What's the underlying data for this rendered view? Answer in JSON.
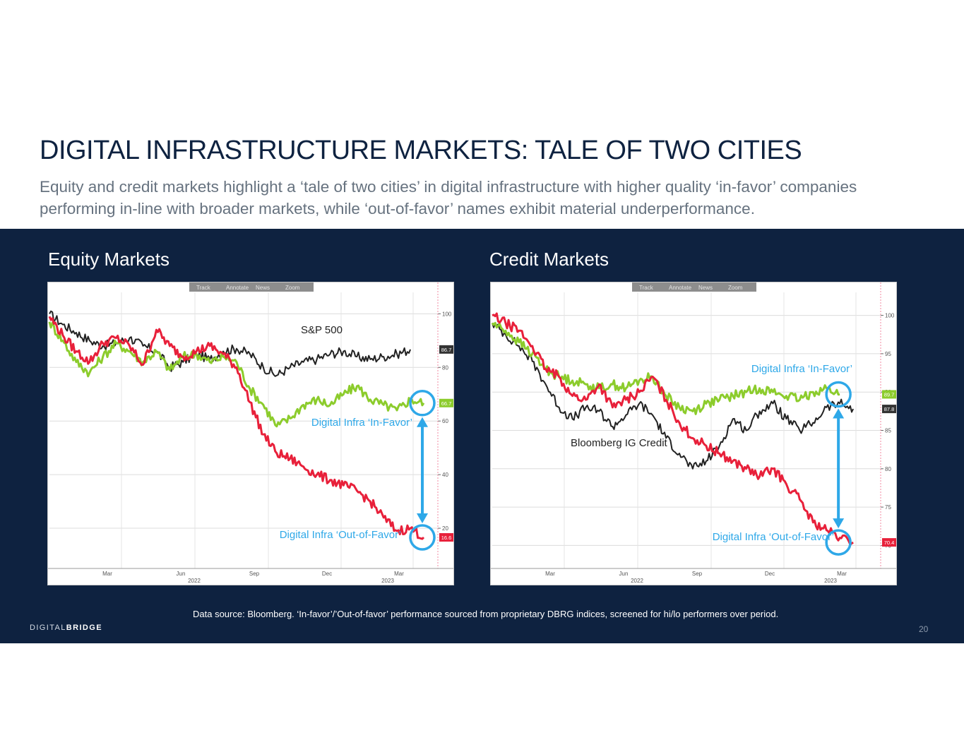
{
  "slide": {
    "title": "DIGITAL INFRASTRUCTURE MARKETS: TALE OF TWO CITIES",
    "subtitle": "Equity and credit markets highlight a ‘tale of two cities’ in digital infrastructure with higher quality ‘in-favor’ companies performing in-line with broader markets, while ‘out-of-favor’ names exhibit material underperformance.",
    "footnote": "Data source: Bloomberg. ‘In-favor’/’Out-of-favor’ performance sourced from proprietary DBRG indices, screened for hi/lo performers over period.",
    "logo_light": "DIGITAL",
    "logo_bold": "BRIDGE",
    "page_number": "20"
  },
  "colors": {
    "navy": "#0e2240",
    "in_favor": "#8ccc2c",
    "out_of_favor": "#e8203a",
    "benchmark": "#222222",
    "highlight": "#2ea8e8"
  },
  "chart_data": [
    {
      "type": "line",
      "panel_title": "Equity Markets",
      "toolbar": [
        "Track",
        "Annotate",
        "News",
        "Zoom"
      ],
      "x_ticks": [
        "Mar",
        "Jun",
        "Sep",
        "Dec",
        "Mar"
      ],
      "year_labels": [
        "2022",
        "2023"
      ],
      "x_domain": [
        0,
        14
      ],
      "y_ticks": [
        20,
        40,
        60,
        80,
        100
      ],
      "ylim": [
        5,
        108
      ],
      "series": [
        {
          "name": "S&P 500",
          "color": "#222222",
          "last_value": "86.7",
          "values": [
            [
              0,
              100
            ],
            [
              0.5,
              96
            ],
            [
              1,
              93
            ],
            [
              1.5,
              90
            ],
            [
              2,
              88
            ],
            [
              2.5,
              89
            ],
            [
              3,
              91
            ],
            [
              3.5,
              88
            ],
            [
              4,
              86
            ],
            [
              4.5,
              80
            ],
            [
              5,
              82
            ],
            [
              5.5,
              85
            ],
            [
              6,
              83
            ],
            [
              6.5,
              86
            ],
            [
              7,
              87
            ],
            [
              7.5,
              85
            ],
            [
              8,
              80
            ],
            [
              8.5,
              77
            ],
            [
              9,
              80
            ],
            [
              9.5,
              82
            ],
            [
              10,
              83
            ],
            [
              10.5,
              85
            ],
            [
              11,
              86
            ],
            [
              11.5,
              84
            ],
            [
              12,
              83
            ],
            [
              12.5,
              84
            ],
            [
              13,
              85
            ],
            [
              13.5,
              86.7
            ]
          ]
        },
        {
          "name": "Digital Infra ‘In-Favor’",
          "color": "#8ccc2c",
          "last_value": "66.7",
          "values": [
            [
              0,
              97
            ],
            [
              0.5,
              90
            ],
            [
              1,
              82
            ],
            [
              1.5,
              78
            ],
            [
              2,
              84
            ],
            [
              2.5,
              89
            ],
            [
              3,
              86
            ],
            [
              3.5,
              82
            ],
            [
              4,
              86
            ],
            [
              4.5,
              79
            ],
            [
              5,
              84
            ],
            [
              5.5,
              85
            ],
            [
              6,
              82
            ],
            [
              6.5,
              84
            ],
            [
              7,
              82
            ],
            [
              7.5,
              72
            ],
            [
              8,
              66
            ],
            [
              8.5,
              58
            ],
            [
              9,
              61
            ],
            [
              9.5,
              66
            ],
            [
              10,
              68
            ],
            [
              10.5,
              66
            ],
            [
              11,
              70
            ],
            [
              11.5,
              73
            ],
            [
              12,
              68
            ],
            [
              12.5,
              66
            ],
            [
              13,
              64
            ],
            [
              13.5,
              68
            ],
            [
              14,
              66.7
            ]
          ]
        },
        {
          "name": "Digital Infra ‘Out-of-Favor’",
          "color": "#e8203a",
          "last_value": "16.6",
          "values": [
            [
              0,
              99
            ],
            [
              0.5,
              92
            ],
            [
              1,
              86
            ],
            [
              1.5,
              82
            ],
            [
              2,
              89
            ],
            [
              2.5,
              91
            ],
            [
              3,
              88
            ],
            [
              3.5,
              81
            ],
            [
              4,
              94
            ],
            [
              4.5,
              88
            ],
            [
              5,
              84
            ],
            [
              5.5,
              86
            ],
            [
              6,
              88
            ],
            [
              6.5,
              85
            ],
            [
              7,
              80
            ],
            [
              7.5,
              67
            ],
            [
              8,
              55
            ],
            [
              8.5,
              48
            ],
            [
              9,
              46
            ],
            [
              9.5,
              43
            ],
            [
              10,
              40
            ],
            [
              10.5,
              38
            ],
            [
              11,
              36
            ],
            [
              11.5,
              34
            ],
            [
              12,
              30
            ],
            [
              12.5,
              24
            ],
            [
              13,
              19
            ],
            [
              13.5,
              20
            ],
            [
              14,
              16.6
            ]
          ]
        }
      ],
      "annotations": [
        {
          "text": "S&P 500",
          "color": "#222222"
        },
        {
          "text": "Digital Infra ‘In-Favor’",
          "color": "#2ea8e8"
        },
        {
          "text": "Digital Infra ‘Out-of-Favor’",
          "color": "#2ea8e8"
        }
      ],
      "gap_arrow_between": [
        66.7,
        16.6
      ]
    },
    {
      "type": "line",
      "panel_title": "Credit Markets",
      "toolbar": [
        "Track",
        "Annotate",
        "News",
        "Zoom"
      ],
      "x_ticks": [
        "Mar",
        "Jun",
        "Sep",
        "Dec",
        "Mar"
      ],
      "year_labels": [
        "2022",
        "2023"
      ],
      "x_domain": [
        0,
        14
      ],
      "y_ticks": [
        70,
        75,
        80,
        85,
        90,
        95,
        100
      ],
      "ylim": [
        67,
        103
      ],
      "series": [
        {
          "name": "Bloomberg IG Credit",
          "color": "#222222",
          "last_value": "87.8",
          "values": [
            [
              0,
              99
            ],
            [
              0.5,
              97.5
            ],
            [
              1,
              96
            ],
            [
              1.5,
              94
            ],
            [
              2,
              91
            ],
            [
              2.5,
              88
            ],
            [
              3,
              86.5
            ],
            [
              3.5,
              88
            ],
            [
              4,
              87.5
            ],
            [
              4.5,
              85.5
            ],
            [
              5,
              87
            ],
            [
              5.5,
              88.5
            ],
            [
              6,
              87
            ],
            [
              6.5,
              84
            ],
            [
              7,
              82
            ],
            [
              7.5,
              80
            ],
            [
              8,
              81
            ],
            [
              8.5,
              83
            ],
            [
              9,
              86.5
            ],
            [
              9.5,
              85
            ],
            [
              10,
              87.5
            ],
            [
              10.5,
              88.5
            ],
            [
              11,
              86.5
            ],
            [
              11.5,
              85
            ],
            [
              12,
              86
            ],
            [
              12.5,
              88
            ],
            [
              13,
              88.5
            ],
            [
              13.5,
              87.8
            ]
          ]
        },
        {
          "name": "Digital Infra ‘In-Favor’",
          "color": "#8ccc2c",
          "last_value": "89.7",
          "values": [
            [
              0,
              99
            ],
            [
              0.5,
              98
            ],
            [
              1,
              96.5
            ],
            [
              1.5,
              95
            ],
            [
              2,
              93
            ],
            [
              2.5,
              92
            ],
            [
              3,
              91.5
            ],
            [
              3.5,
              91
            ],
            [
              4,
              90.5
            ],
            [
              4.5,
              91
            ],
            [
              5,
              90.5
            ],
            [
              5.5,
              91.5
            ],
            [
              6,
              92
            ],
            [
              6.5,
              89.5
            ],
            [
              7,
              88
            ],
            [
              7.5,
              87.5
            ],
            [
              8,
              88.5
            ],
            [
              8.5,
              89
            ],
            [
              9,
              89.5
            ],
            [
              9.5,
              90
            ],
            [
              10,
              90.5
            ],
            [
              10.5,
              90
            ],
            [
              11,
              89.5
            ],
            [
              11.5,
              89
            ],
            [
              12,
              90
            ],
            [
              12.5,
              90.5
            ],
            [
              13,
              89.7
            ]
          ]
        },
        {
          "name": "Digital Infra ‘Out-of-Favor’",
          "color": "#e8203a",
          "last_value": "70.4",
          "values": [
            [
              0,
              100
            ],
            [
              0.5,
              99
            ],
            [
              1,
              98
            ],
            [
              1.5,
              96
            ],
            [
              2,
              93
            ],
            [
              2.5,
              92
            ],
            [
              3,
              89.5
            ],
            [
              3.5,
              89
            ],
            [
              4,
              91
            ],
            [
              4.5,
              88
            ],
            [
              5,
              89
            ],
            [
              5.5,
              90
            ],
            [
              6,
              92
            ],
            [
              6.5,
              89
            ],
            [
              7,
              86
            ],
            [
              7.5,
              84
            ],
            [
              8,
              83
            ],
            [
              8.5,
              82
            ],
            [
              9,
              81
            ],
            [
              9.5,
              80
            ],
            [
              10,
              79
            ],
            [
              10.5,
              80
            ],
            [
              11,
              78
            ],
            [
              11.5,
              76
            ],
            [
              12,
              73
            ],
            [
              12.5,
              72
            ],
            [
              13,
              71
            ],
            [
              13.5,
              70.4
            ]
          ]
        }
      ],
      "annotations": [
        {
          "text": "Digital Infra ‘In-Favor’",
          "color": "#2ea8e8"
        },
        {
          "text": "Bloomberg IG Credit",
          "color": "#222222"
        },
        {
          "text": "Digital Infra ‘Out-of-Favor’",
          "color": "#2ea8e8"
        }
      ],
      "gap_arrow_between": [
        89.7,
        70.4
      ]
    }
  ]
}
